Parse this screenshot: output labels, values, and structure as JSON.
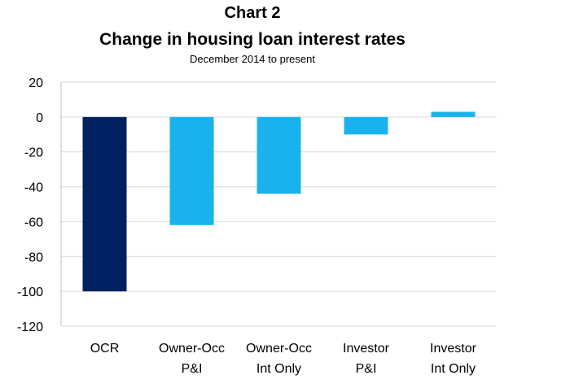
{
  "chart_data": {
    "type": "bar",
    "title": "Chart 2",
    "subtitle": "Change in housing loan interest rates",
    "note": "December 2014 to present",
    "categories": [
      [
        "OCR"
      ],
      [
        "Owner-Occ",
        "P&I"
      ],
      [
        "Owner-Occ",
        "Int Only"
      ],
      [
        "Investor",
        "P&I"
      ],
      [
        "Investor",
        "Int Only"
      ]
    ],
    "values": [
      -100,
      -62,
      -44,
      -10,
      3
    ],
    "bar_colors": [
      "#002060",
      "#1ab2ec",
      "#1ab2ec",
      "#1ab2ec",
      "#1ab2ec"
    ],
    "ylim": [
      -120,
      20
    ],
    "yticks": [
      20,
      0,
      -20,
      -40,
      -60,
      -80,
      -100,
      -120
    ],
    "grid": true,
    "legend": "none"
  }
}
